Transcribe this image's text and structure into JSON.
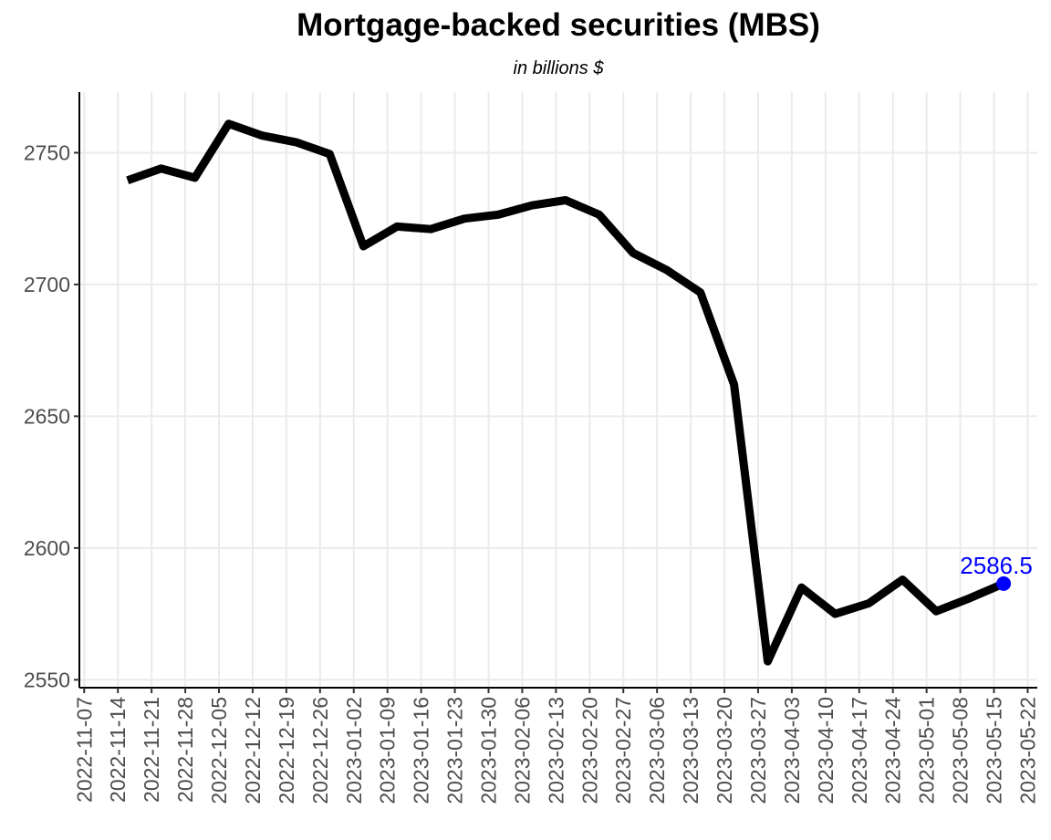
{
  "chart_data": {
    "type": "line",
    "title": "Mortgage-backed securities (MBS)",
    "subtitle": "in billions $",
    "xlabel": "",
    "ylabel": "",
    "x_ticks": [
      "2022-11-07",
      "2022-11-14",
      "2022-11-21",
      "2022-11-28",
      "2022-12-05",
      "2022-12-12",
      "2022-12-19",
      "2022-12-26",
      "2023-01-02",
      "2023-01-09",
      "2023-01-16",
      "2023-01-23",
      "2023-01-30",
      "2023-02-06",
      "2023-02-13",
      "2023-02-20",
      "2023-02-27",
      "2023-03-06",
      "2023-03-13",
      "2023-03-20",
      "2023-03-27",
      "2023-04-03",
      "2023-04-10",
      "2023-04-17",
      "2023-04-24",
      "2023-05-01",
      "2023-05-08",
      "2023-05-15",
      "2023-05-22"
    ],
    "y_ticks": [
      2550,
      2600,
      2650,
      2700,
      2750
    ],
    "ylim": [
      2547,
      2773
    ],
    "xlim": [
      "2022-11-06",
      "2023-05-24"
    ],
    "grid": true,
    "series": [
      {
        "color": "#000000",
        "points": [
          {
            "x": "2022-11-16",
            "y": 2739.5
          },
          {
            "x": "2022-11-23",
            "y": 2744
          },
          {
            "x": "2022-11-30",
            "y": 2740.5
          },
          {
            "x": "2022-12-07",
            "y": 2761
          },
          {
            "x": "2022-12-14",
            "y": 2756.5
          },
          {
            "x": "2022-12-21",
            "y": 2754
          },
          {
            "x": "2022-12-28",
            "y": 2749.5
          },
          {
            "x": "2023-01-04",
            "y": 2714.5
          },
          {
            "x": "2023-01-11",
            "y": 2722
          },
          {
            "x": "2023-01-18",
            "y": 2721
          },
          {
            "x": "2023-01-25",
            "y": 2725
          },
          {
            "x": "2023-02-01",
            "y": 2726.5
          },
          {
            "x": "2023-02-08",
            "y": 2730
          },
          {
            "x": "2023-02-15",
            "y": 2732
          },
          {
            "x": "2023-02-22",
            "y": 2726.5
          },
          {
            "x": "2023-03-01",
            "y": 2712
          },
          {
            "x": "2023-03-08",
            "y": 2705.5
          },
          {
            "x": "2023-03-15",
            "y": 2697
          },
          {
            "x": "2023-03-22",
            "y": 2662
          },
          {
            "x": "2023-03-29",
            "y": 2557
          },
          {
            "x": "2023-04-05",
            "y": 2585
          },
          {
            "x": "2023-04-12",
            "y": 2575
          },
          {
            "x": "2023-04-19",
            "y": 2579
          },
          {
            "x": "2023-04-26",
            "y": 2588
          },
          {
            "x": "2023-05-03",
            "y": 2576
          },
          {
            "x": "2023-05-10",
            "y": 2581
          },
          {
            "x": "2023-05-17",
            "y": 2586.5
          }
        ]
      }
    ],
    "annotation": {
      "label": "2586.5",
      "x": "2023-05-17",
      "y": 2586.5,
      "color": "#0000ff"
    }
  }
}
